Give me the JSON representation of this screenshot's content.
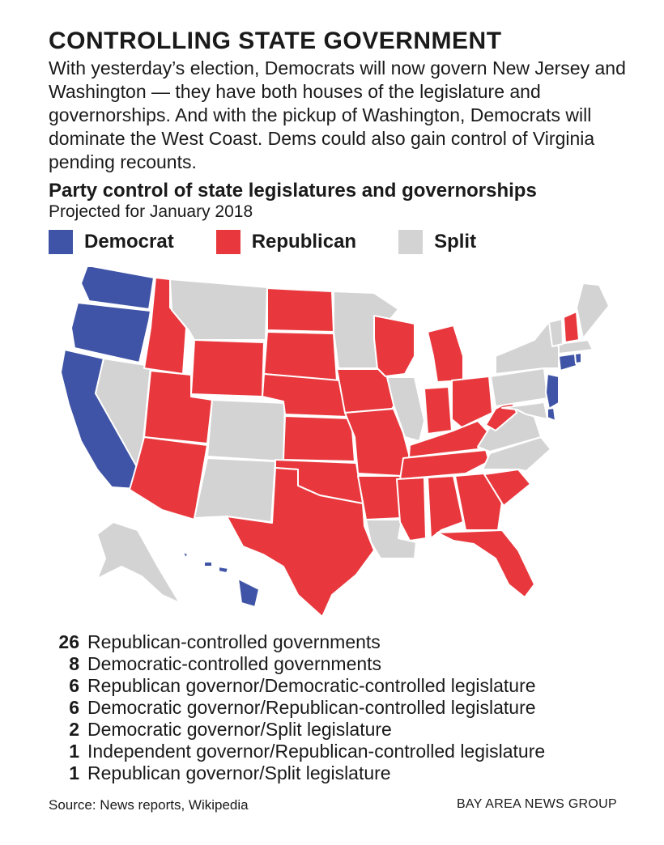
{
  "headline": "CONTROLLING STATE GOVERNMENT",
  "intro": "With yesterday’s election, Democrats will now govern New Jersey and Washington — they have both houses of the legislature and governorships. And with the pickup of Washington, Democrats will dominate the West Coast. Dems could also gain control of Virginia pending recounts.",
  "subhead": "Party control of state legislatures and governorships",
  "subsubhead": "Projected for January 2018",
  "legend": [
    {
      "label": "Democrat",
      "color": "#3f54a6"
    },
    {
      "label": "Republican",
      "color": "#e8383d"
    },
    {
      "label": "Split",
      "color": "#d3d3d3"
    }
  ],
  "map_colors": {
    "D": "#3f54a6",
    "R": "#e8383d",
    "S": "#d3d3d3"
  },
  "states": [
    {
      "name": "Washington",
      "party": "D"
    },
    {
      "name": "Oregon",
      "party": "D"
    },
    {
      "name": "California",
      "party": "D"
    },
    {
      "name": "Nevada",
      "party": "S"
    },
    {
      "name": "Idaho",
      "party": "R"
    },
    {
      "name": "Montana",
      "party": "S"
    },
    {
      "name": "Wyoming",
      "party": "R"
    },
    {
      "name": "Utah",
      "party": "R"
    },
    {
      "name": "Arizona",
      "party": "R"
    },
    {
      "name": "Colorado",
      "party": "S"
    },
    {
      "name": "New Mexico",
      "party": "S"
    },
    {
      "name": "North Dakota",
      "party": "R"
    },
    {
      "name": "South Dakota",
      "party": "R"
    },
    {
      "name": "Nebraska",
      "party": "R"
    },
    {
      "name": "Kansas",
      "party": "R"
    },
    {
      "name": "Oklahoma",
      "party": "R"
    },
    {
      "name": "Texas",
      "party": "R"
    },
    {
      "name": "Minnesota",
      "party": "S"
    },
    {
      "name": "Iowa",
      "party": "R"
    },
    {
      "name": "Missouri",
      "party": "R"
    },
    {
      "name": "Arkansas",
      "party": "R"
    },
    {
      "name": "Louisiana",
      "party": "S"
    },
    {
      "name": "Wisconsin",
      "party": "R"
    },
    {
      "name": "Illinois",
      "party": "S"
    },
    {
      "name": "Michigan",
      "party": "R"
    },
    {
      "name": "Indiana",
      "party": "R"
    },
    {
      "name": "Ohio",
      "party": "R"
    },
    {
      "name": "Kentucky",
      "party": "R"
    },
    {
      "name": "Tennessee",
      "party": "R"
    },
    {
      "name": "Mississippi",
      "party": "R"
    },
    {
      "name": "Alabama",
      "party": "R"
    },
    {
      "name": "Georgia",
      "party": "R"
    },
    {
      "name": "Florida",
      "party": "R"
    },
    {
      "name": "South Carolina",
      "party": "R"
    },
    {
      "name": "North Carolina",
      "party": "S"
    },
    {
      "name": "Virginia",
      "party": "S"
    },
    {
      "name": "West Virginia",
      "party": "R"
    },
    {
      "name": "Pennsylvania",
      "party": "S"
    },
    {
      "name": "New York",
      "party": "S"
    },
    {
      "name": "New Jersey",
      "party": "D"
    },
    {
      "name": "Delaware",
      "party": "D"
    },
    {
      "name": "Maryland",
      "party": "S"
    },
    {
      "name": "Connecticut",
      "party": "D"
    },
    {
      "name": "Rhode Island",
      "party": "D"
    },
    {
      "name": "Massachusetts",
      "party": "S"
    },
    {
      "name": "Vermont",
      "party": "S"
    },
    {
      "name": "New Hampshire",
      "party": "R"
    },
    {
      "name": "Maine",
      "party": "S"
    },
    {
      "name": "Alaska",
      "party": "S"
    },
    {
      "name": "Hawaii",
      "party": "D"
    }
  ],
  "stats": [
    {
      "count": "26",
      "label": "Republican-controlled governments"
    },
    {
      "count": "8",
      "label": "Democratic-controlled governments"
    },
    {
      "count": "6",
      "label": "Republican governor/Democratic-controlled legislature"
    },
    {
      "count": "6",
      "label": "Democratic governor/Republican-controlled legislature"
    },
    {
      "count": "2",
      "label": "Democratic governor/Split legislature"
    },
    {
      "count": "1",
      "label": "Independent governor/Republican-controlled legislature"
    },
    {
      "count": "1",
      "label": "Republican governor/Split legislature"
    }
  ],
  "source": "Source: News reports, Wikipedia",
  "credit": "BAY AREA NEWS GROUP"
}
